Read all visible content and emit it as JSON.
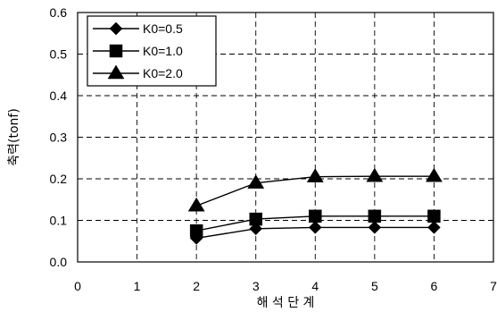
{
  "chart_data": {
    "type": "line",
    "title": "",
    "xlabel": "해 석 단 계",
    "ylabel": "축력(tonf)",
    "xlim": [
      0,
      7
    ],
    "ylim": [
      0,
      0.6
    ],
    "x_ticks": [
      0,
      1,
      2,
      3,
      4,
      5,
      6,
      7
    ],
    "y_ticks": [
      0.0,
      0.1,
      0.2,
      0.3,
      0.4,
      0.5,
      0.6
    ],
    "x_tick_labels": [
      "0",
      "1",
      "2",
      "3",
      "4",
      "5",
      "6",
      "7"
    ],
    "y_tick_labels": [
      "0.0",
      "0.1",
      "0.2",
      "0.3",
      "0.4",
      "0.5",
      "0.6"
    ],
    "grid": true,
    "legend_position": "top-left",
    "series": [
      {
        "name": "K0=0.5",
        "marker": "diamond",
        "x": [
          2,
          3,
          4,
          5,
          6
        ],
        "y": [
          0.057,
          0.08,
          0.083,
          0.083,
          0.083
        ]
      },
      {
        "name": "K0=1.0",
        "marker": "square",
        "x": [
          2,
          3,
          4,
          5,
          6
        ],
        "y": [
          0.075,
          0.103,
          0.11,
          0.11,
          0.11
        ]
      },
      {
        "name": "K0=2.0",
        "marker": "triangle",
        "x": [
          2,
          3,
          4,
          5,
          6
        ],
        "y": [
          0.135,
          0.19,
          0.205,
          0.206,
          0.206
        ]
      }
    ],
    "colors": {
      "line": "#000000",
      "grid": "#000000",
      "background": "#ffffff"
    }
  }
}
